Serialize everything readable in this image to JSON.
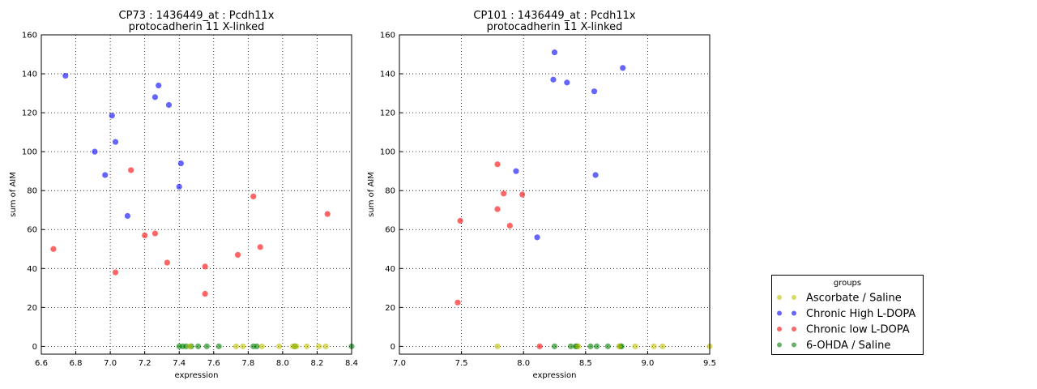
{
  "chart_data": [
    {
      "type": "scatter",
      "title": "CP73 : 1436449_at : Pcdh11x",
      "subtitle": "protocadherin 11 X-linked",
      "xlabel": "expression",
      "ylabel": "sum of AIM",
      "xlim": [
        6.6,
        8.4
      ],
      "ylim": [
        -4,
        160
      ],
      "xticks": [
        "6.6",
        "6.8",
        "7.0",
        "7.2",
        "7.4",
        "7.6",
        "7.8",
        "8.0",
        "8.2",
        "8.4"
      ],
      "yticks": [
        "0",
        "20",
        "40",
        "60",
        "80",
        "100",
        "120",
        "140",
        "160"
      ],
      "grid": true,
      "series": [
        {
          "name": "Chronic High L-DOPA",
          "color": "#0000ff",
          "points": [
            [
              6.74,
              139
            ],
            [
              6.91,
              100
            ],
            [
              6.97,
              88
            ],
            [
              7.01,
              118.5
            ],
            [
              7.03,
              105
            ],
            [
              7.1,
              67
            ],
            [
              7.26,
              128
            ],
            [
              7.28,
              134
            ],
            [
              7.34,
              124
            ],
            [
              7.41,
              94
            ],
            [
              7.4,
              82
            ]
          ]
        },
        {
          "name": "Chronic low L-DOPA",
          "color": "#ff0000",
          "points": [
            [
              6.67,
              50
            ],
            [
              7.03,
              38
            ],
            [
              7.12,
              90.5
            ],
            [
              7.2,
              57
            ],
            [
              7.26,
              58
            ],
            [
              7.33,
              43
            ],
            [
              7.55,
              41
            ],
            [
              7.55,
              27
            ],
            [
              7.74,
              47
            ],
            [
              7.83,
              77
            ],
            [
              7.87,
              51
            ],
            [
              8.26,
              68
            ]
          ]
        },
        {
          "name": "6-OHDA / Saline",
          "color": "#008000",
          "points": [
            [
              7.4,
              0
            ],
            [
              7.42,
              0
            ],
            [
              7.44,
              0
            ],
            [
              7.47,
              0
            ],
            [
              7.51,
              0
            ],
            [
              7.56,
              0
            ],
            [
              7.63,
              0
            ],
            [
              7.83,
              0
            ],
            [
              7.85,
              0
            ],
            [
              8.07,
              0
            ],
            [
              8.4,
              0
            ]
          ]
        },
        {
          "name": "Ascorbate / Saline",
          "color": "#bfbf00",
          "points": [
            [
              7.46,
              0
            ],
            [
              7.73,
              0
            ],
            [
              7.77,
              0
            ],
            [
              7.88,
              0
            ],
            [
              7.98,
              0
            ],
            [
              8.06,
              0
            ],
            [
              8.08,
              0
            ],
            [
              8.14,
              0
            ],
            [
              8.21,
              0
            ],
            [
              8.25,
              0
            ]
          ]
        }
      ]
    },
    {
      "type": "scatter",
      "title": "CP101 : 1436449_at : Pcdh11x",
      "subtitle": "protocadherin 11 X-linked",
      "xlabel": "expression",
      "ylabel": "sum of AIM",
      "xlim": [
        7.0,
        9.5
      ],
      "ylim": [
        -4,
        160
      ],
      "xticks": [
        "7.0",
        "7.5",
        "8.0",
        "8.5",
        "9.0",
        "9.5"
      ],
      "yticks": [
        "0",
        "20",
        "40",
        "60",
        "80",
        "100",
        "120",
        "140",
        "160"
      ],
      "grid": true,
      "series": [
        {
          "name": "Chronic High L-DOPA",
          "color": "#0000ff",
          "points": [
            [
              8.25,
              151
            ],
            [
              8.24,
              137
            ],
            [
              8.35,
              135.5
            ],
            [
              8.57,
              131
            ],
            [
              8.8,
              143
            ],
            [
              7.94,
              90
            ],
            [
              8.58,
              88
            ],
            [
              8.11,
              56
            ]
          ]
        },
        {
          "name": "Chronic low L-DOPA",
          "color": "#ff0000",
          "points": [
            [
              7.79,
              93.5
            ],
            [
              7.84,
              78.5
            ],
            [
              7.99,
              78
            ],
            [
              7.79,
              70.5
            ],
            [
              7.89,
              62
            ],
            [
              7.49,
              64.5
            ],
            [
              7.47,
              22.5
            ],
            [
              8.13,
              0
            ]
          ]
        },
        {
          "name": "6-OHDA / Saline",
          "color": "#008000",
          "points": [
            [
              8.25,
              0
            ],
            [
              8.38,
              0
            ],
            [
              8.42,
              0
            ],
            [
              8.43,
              0
            ],
            [
              8.54,
              0
            ],
            [
              8.59,
              0
            ],
            [
              8.68,
              0
            ],
            [
              8.78,
              0
            ],
            [
              8.79,
              0
            ]
          ]
        },
        {
          "name": "Ascorbate / Saline",
          "color": "#bfbf00",
          "points": [
            [
              7.79,
              0
            ],
            [
              8.44,
              0
            ],
            [
              8.77,
              0
            ],
            [
              8.9,
              0
            ],
            [
              9.05,
              0
            ],
            [
              9.12,
              0
            ],
            [
              9.5,
              0
            ]
          ]
        }
      ]
    }
  ],
  "legend": {
    "title": "groups",
    "placement": "bottom-right",
    "items": [
      {
        "label": "Ascorbate / Saline",
        "color": "#bfbf00"
      },
      {
        "label": "Chronic High L-DOPA",
        "color": "#0000ff"
      },
      {
        "label": "Chronic low L-DOPA",
        "color": "#ff0000"
      },
      {
        "label": "6-OHDA / Saline",
        "color": "#008000"
      }
    ]
  }
}
